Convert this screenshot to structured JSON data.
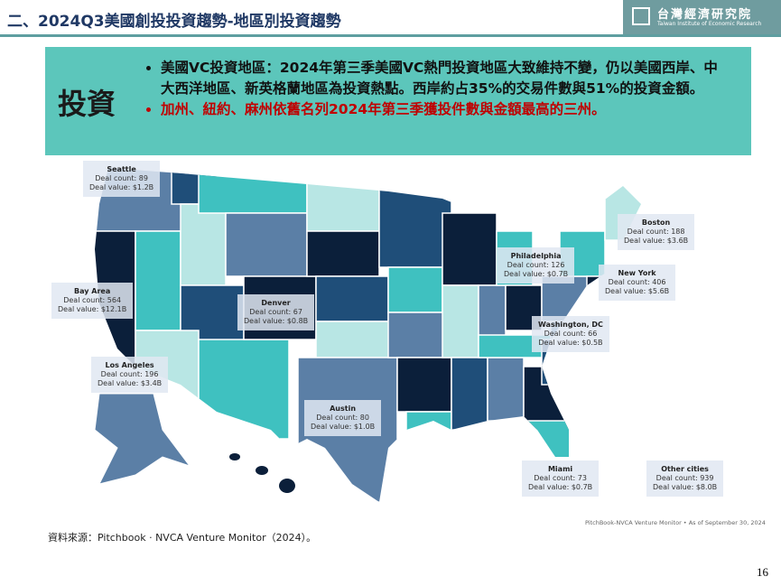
{
  "header": {
    "title": "二、2024Q3美國創投投資趨勢-地區別投資趨勢",
    "logo_name": "台灣經濟研究院",
    "logo_sub": "Taiwan Institute of Economic Research"
  },
  "summary": {
    "label": "投資",
    "bullets": [
      "美國VC投資地區：2024年第三季美國VC熱門投資地區大致維持不變，仍以美國西岸、中大西洋地區、新英格蘭地區為投資熱點。西岸約占35%的交易件數與51%的投資金額。",
      "加州、紐約、麻州依舊名列2024年第三季獲投件數與金額最高的三州。"
    ]
  },
  "map": {
    "callouts": [
      {
        "city": "Seattle",
        "count": "Deal count: 89",
        "value": "Deal value: $1.2B"
      },
      {
        "city": "Bay Area",
        "count": "Deal count: 564",
        "value": "Deal value: $12.1B"
      },
      {
        "city": "Los Angeles",
        "count": "Deal count: 196",
        "value": "Deal value: $3.4B"
      },
      {
        "city": "Denver",
        "count": "Deal count: 67",
        "value": "Deal value: $0.8B"
      },
      {
        "city": "Austin",
        "count": "Deal count: 80",
        "value": "Deal value: $1.0B"
      },
      {
        "city": "Philadelphia",
        "count": "Deal count: 126",
        "value": "Deal value: $0.7B"
      },
      {
        "city": "Boston",
        "count": "Deal count: 188",
        "value": "Deal value: $3.6B"
      },
      {
        "city": "New York",
        "count": "Deal count: 406",
        "value": "Deal value: $5.6B"
      },
      {
        "city": "Washington, DC",
        "count": "Deal count: 66",
        "value": "Deal value: $0.5B"
      },
      {
        "city": "Miami",
        "count": "Deal count: 73",
        "value": "Deal value: $0.7B"
      },
      {
        "city": "Other cities",
        "count": "Deal count: 939",
        "value": "Deal value: $8.0B"
      }
    ],
    "source_note": "PitchBook-NVCA Venture Monitor • As of September 30, 2024"
  },
  "footer": {
    "source": "資料來源：Pitchbook · NVCA Venture Monitor（2024）。",
    "page": "16"
  }
}
